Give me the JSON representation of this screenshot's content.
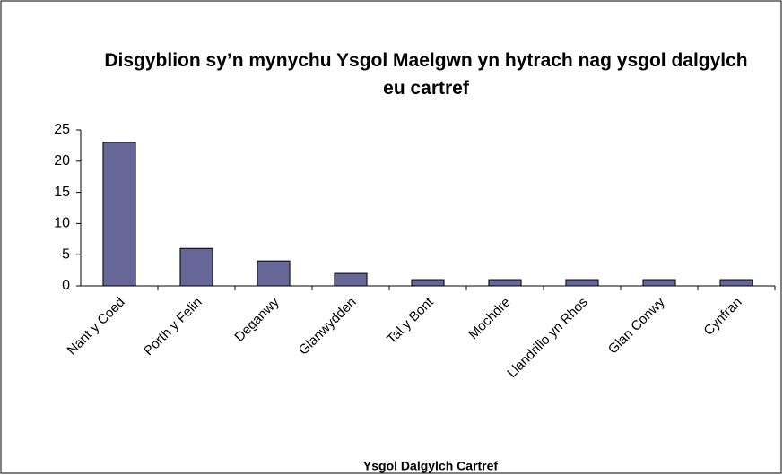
{
  "chart_data": {
    "type": "bar",
    "title": "Disgyblion sy’n mynychu Ysgol Maelgwn yn hytrach nag ysgol dalgylch eu cartref",
    "x_label": "Ysgol Dalgylch Cartref",
    "categories": [
      "Nant y Coed",
      "Porth y Felin",
      "Deganwy",
      "Glanwydden",
      "Tal y Bont",
      "Mochdre",
      "Llandrillo yn Rhos",
      "Glan Conwy",
      "Cynfran"
    ],
    "values": [
      23,
      6,
      4,
      2,
      1,
      1,
      1,
      1,
      1
    ],
    "color": "#666699",
    "ylim": [
      0,
      25
    ],
    "yticks": [
      0,
      5,
      10,
      15,
      20,
      25
    ],
    "grid": false
  }
}
